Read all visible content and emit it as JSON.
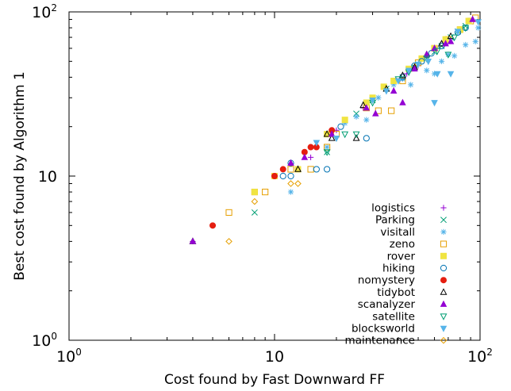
{
  "chart_data": {
    "type": "scatter",
    "title": "",
    "xlabel": "Cost found by Fast Downward FF",
    "ylabel": "Best cost found by Algorithm 1",
    "xscale": "log",
    "yscale": "log",
    "xlim": [
      1,
      100
    ],
    "ylim": [
      1,
      100
    ],
    "x_ticks": [
      {
        "base": "10",
        "exp": "0",
        "value": 1
      },
      {
        "base": "10",
        "exp": "",
        "value": 10
      },
      {
        "base": "10",
        "exp": "2",
        "value": 100
      }
    ],
    "y_ticks": [
      {
        "base": "10",
        "exp": "0",
        "value": 1
      },
      {
        "base": "10",
        "exp": "",
        "value": 10
      },
      {
        "base": "10",
        "exp": "2",
        "value": 100
      }
    ],
    "grid": false,
    "legend_position": "bottom-right",
    "series": [
      {
        "name": "logistics",
        "marker": "plus",
        "color": "#9400d3",
        "points": [
          [
            4,
            4
          ],
          [
            15,
            13
          ],
          [
            20,
            19
          ],
          [
            27,
            26
          ],
          [
            30,
            30
          ],
          [
            35,
            33
          ],
          [
            40,
            38
          ],
          [
            44,
            42
          ],
          [
            50,
            47
          ],
          [
            55,
            53
          ],
          [
            62,
            60
          ],
          [
            70,
            68
          ],
          [
            80,
            78
          ],
          [
            90,
            88
          ]
        ]
      },
      {
        "name": "Parking",
        "marker": "x",
        "color": "#009e73",
        "points": [
          [
            8,
            6
          ],
          [
            18,
            14
          ],
          [
            25,
            24
          ],
          [
            30,
            29
          ],
          [
            35,
            34
          ],
          [
            42,
            40
          ],
          [
            48,
            46
          ],
          [
            55,
            52
          ],
          [
            60,
            57
          ],
          [
            65,
            62
          ],
          [
            72,
            70
          ],
          [
            78,
            76
          ],
          [
            85,
            82
          ]
        ]
      },
      {
        "name": "visitall",
        "marker": "star",
        "color": "#56b4e9",
        "points": [
          [
            12,
            8
          ],
          [
            18,
            15
          ],
          [
            22,
            21
          ],
          [
            25,
            23
          ],
          [
            28,
            22
          ],
          [
            32,
            30
          ],
          [
            38,
            36
          ],
          [
            42,
            39
          ],
          [
            46,
            36
          ],
          [
            55,
            44
          ],
          [
            60,
            42
          ],
          [
            65,
            50
          ],
          [
            70,
            55
          ],
          [
            75,
            54
          ],
          [
            85,
            63
          ],
          [
            95,
            66
          ],
          [
            98,
            80
          ]
        ]
      },
      {
        "name": "zeno",
        "marker": "square-open",
        "color": "#e69f00",
        "points": [
          [
            6,
            6
          ],
          [
            8,
            8
          ],
          [
            9,
            8
          ],
          [
            12,
            11
          ],
          [
            15,
            11
          ],
          [
            18,
            15
          ],
          [
            20,
            18
          ],
          [
            28,
            26
          ],
          [
            32,
            25
          ],
          [
            37,
            25
          ],
          [
            42,
            38
          ],
          [
            50,
            49
          ],
          [
            60,
            60
          ],
          [
            70,
            68
          ],
          [
            80,
            78
          ],
          [
            90,
            88
          ],
          [
            95,
            92
          ]
        ]
      },
      {
        "name": "rover",
        "marker": "square-filled",
        "color": "#f0e442",
        "points": [
          [
            8,
            8
          ],
          [
            10,
            10
          ],
          [
            13,
            11
          ],
          [
            18,
            18
          ],
          [
            22,
            22
          ],
          [
            28,
            28
          ],
          [
            30,
            30
          ],
          [
            34,
            35
          ],
          [
            38,
            38
          ],
          [
            45,
            45
          ],
          [
            52,
            52
          ],
          [
            60,
            60
          ],
          [
            68,
            68
          ],
          [
            80,
            78
          ],
          [
            88,
            88
          ]
        ]
      },
      {
        "name": "hiking",
        "marker": "circle-open",
        "color": "#0072b2",
        "points": [
          [
            11,
            10
          ],
          [
            12,
            10
          ],
          [
            12,
            12
          ],
          [
            16,
            11
          ],
          [
            18,
            11
          ],
          [
            21,
            20
          ],
          [
            28,
            17
          ],
          [
            42,
            40
          ],
          [
            48,
            47
          ],
          [
            52,
            50
          ],
          [
            58,
            56
          ],
          [
            65,
            62
          ],
          [
            78,
            75
          ],
          [
            85,
            80
          ]
        ]
      },
      {
        "name": "nomystery",
        "marker": "circle-filled",
        "color": "#e51e10",
        "points": [
          [
            5,
            5
          ],
          [
            10,
            10
          ],
          [
            11,
            11
          ],
          [
            14,
            14
          ],
          [
            15,
            15
          ],
          [
            16,
            15
          ],
          [
            19,
            19
          ]
        ]
      },
      {
        "name": "tidybot",
        "marker": "triangle-open",
        "color": "#000000",
        "points": [
          [
            4,
            4
          ],
          [
            13,
            11
          ],
          [
            18,
            18
          ],
          [
            19,
            17
          ],
          [
            25,
            17
          ],
          [
            27,
            27
          ],
          [
            35,
            34
          ],
          [
            42,
            41
          ],
          [
            48,
            46
          ],
          [
            55,
            55
          ],
          [
            65,
            64
          ],
          [
            72,
            71
          ]
        ]
      },
      {
        "name": "scanalyzer",
        "marker": "triangle-filled",
        "color": "#9400d3",
        "points": [
          [
            4,
            4
          ],
          [
            12,
            12
          ],
          [
            14,
            13
          ],
          [
            19,
            18
          ],
          [
            28,
            26
          ],
          [
            31,
            24
          ],
          [
            38,
            33
          ],
          [
            42,
            28
          ],
          [
            48,
            45
          ],
          [
            55,
            55
          ],
          [
            60,
            60
          ],
          [
            68,
            64
          ],
          [
            72,
            66
          ],
          [
            92,
            90
          ]
        ]
      },
      {
        "name": "satellite",
        "marker": "triangle-down-open",
        "color": "#009e73",
        "points": [
          [
            18,
            14
          ],
          [
            22,
            18
          ],
          [
            25,
            18
          ],
          [
            30,
            28
          ],
          [
            40,
            39
          ],
          [
            45,
            43
          ],
          [
            55,
            52
          ],
          [
            62,
            58
          ],
          [
            70,
            55
          ],
          [
            75,
            70
          ],
          [
            85,
            80
          ]
        ]
      },
      {
        "name": "blocksworld",
        "marker": "triangle-down-filled",
        "color": "#56b4e9",
        "points": [
          [
            16,
            16
          ],
          [
            20,
            17
          ],
          [
            30,
            29
          ],
          [
            35,
            33
          ],
          [
            40,
            38
          ],
          [
            45,
            44
          ],
          [
            50,
            48
          ],
          [
            56,
            50
          ],
          [
            60,
            28
          ],
          [
            62,
            42
          ],
          [
            72,
            42
          ],
          [
            78,
            76
          ],
          [
            98,
            87
          ]
        ]
      },
      {
        "name": "maintenance",
        "marker": "diamond-open",
        "color": "#e69f00",
        "points": [
          [
            6,
            4
          ],
          [
            8,
            7
          ],
          [
            12,
            9
          ],
          [
            13,
            9
          ]
        ]
      }
    ]
  }
}
